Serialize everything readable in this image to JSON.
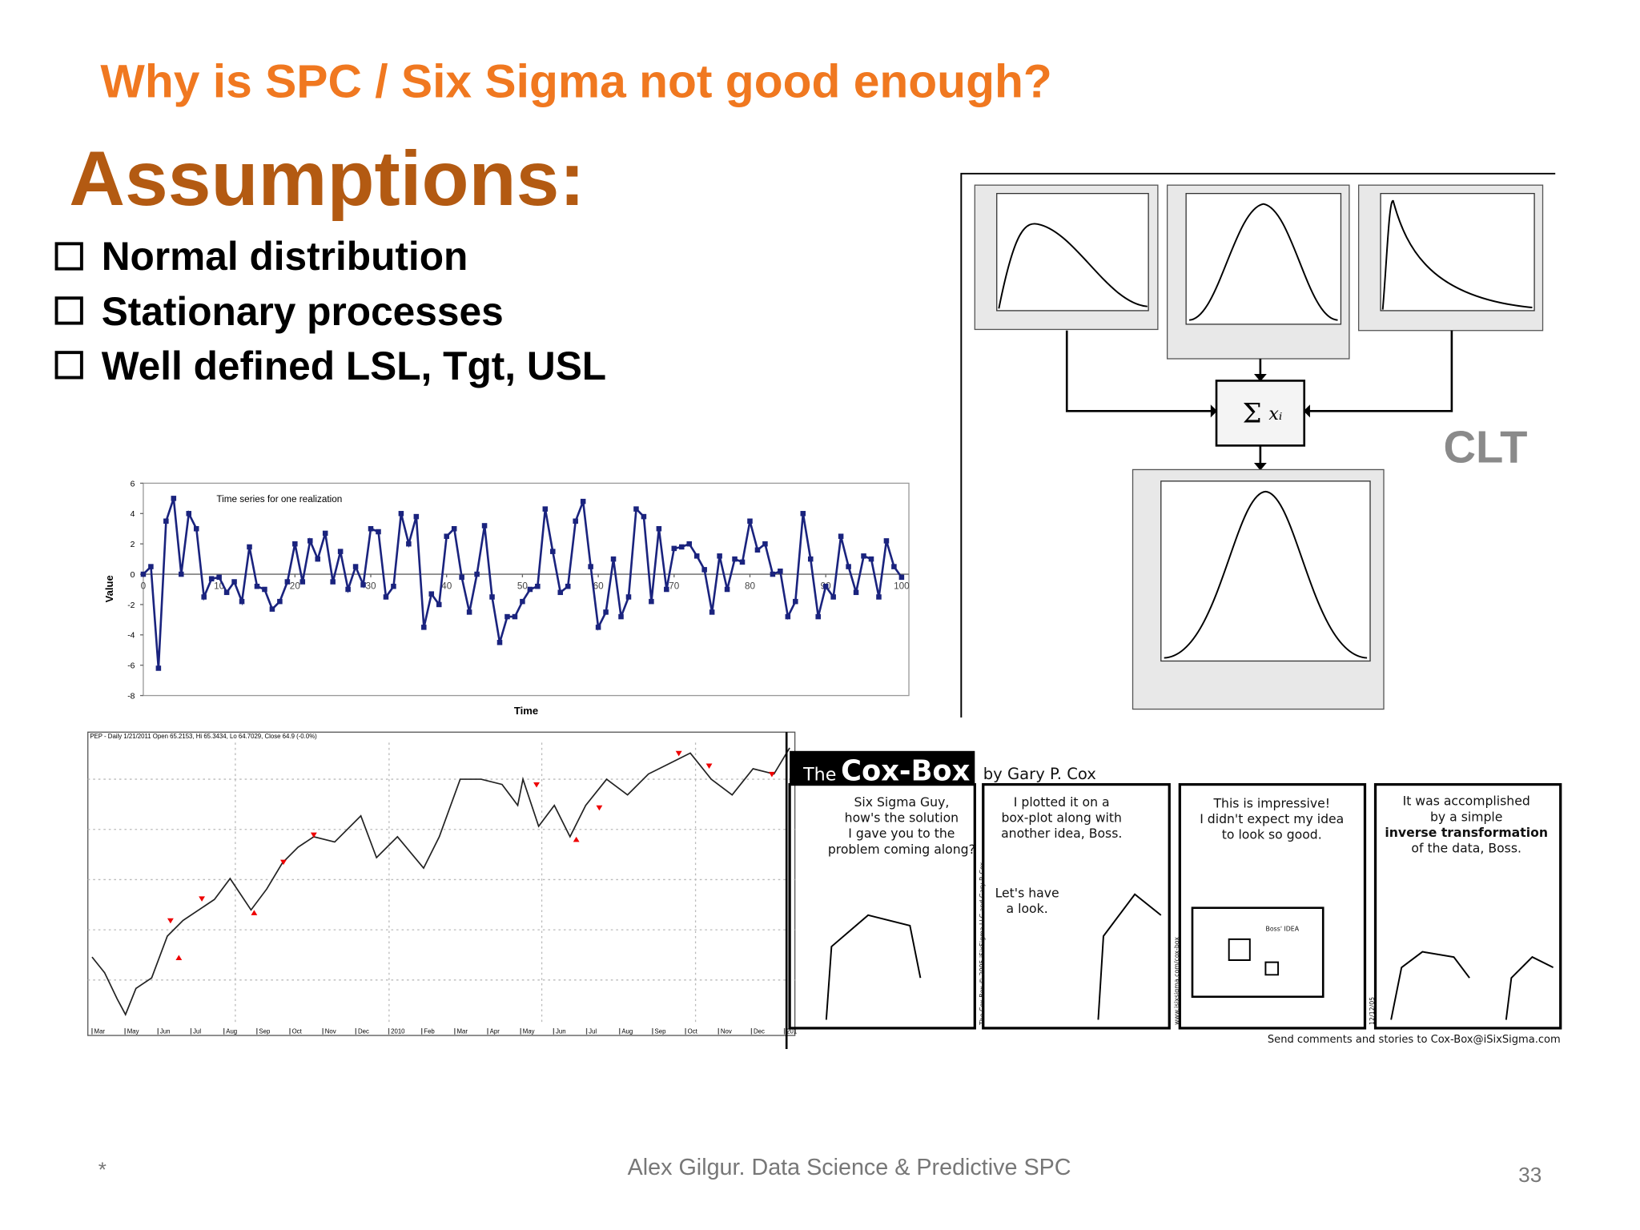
{
  "header": {
    "title": "Why is SPC / Six Sigma not good enough?"
  },
  "heading": "Assumptions:",
  "bullets": [
    "Normal distribution",
    "Stationary processes",
    "Well defined LSL, Tgt, USL"
  ],
  "clt": {
    "label": "CLT"
  },
  "time_series": {
    "title": "Time series for one realization",
    "y_label": "Value",
    "x_label": "Time",
    "xlim": [
      0,
      100
    ],
    "ylim": [
      -8,
      6
    ],
    "xticks": [
      0,
      10,
      20,
      30,
      40,
      50,
      60,
      70,
      80,
      90,
      100
    ],
    "yticks": [
      -8,
      -6,
      -4,
      -2,
      0,
      2,
      4,
      6
    ],
    "color": "#1a237e",
    "values": [
      0,
      0.5,
      -6.2,
      3.5,
      5,
      0,
      4,
      3,
      -1.5,
      -0.3,
      -0.2,
      -1.2,
      -0.5,
      -1.8,
      1.8,
      -0.8,
      -1,
      -2.3,
      -1.8,
      -0.5,
      2,
      -0.5,
      2.2,
      1,
      2.7,
      -0.5,
      1.5,
      -1,
      0.5,
      -0.7,
      3,
      2.8,
      -1.5,
      -0.8,
      4,
      2,
      3.8,
      -3.5,
      -1.3,
      -2,
      2.5,
      3,
      -0.2,
      -2.5,
      0,
      3.2,
      -1.5,
      -4.5,
      -2.8,
      -2.8,
      -1.8,
      -1,
      -0.8,
      4.3,
      1.5,
      -1.2,
      -0.8,
      3.5,
      4.8,
      0.5,
      -3.5,
      -2.5,
      1,
      -2.8,
      -1.5,
      4.3,
      3.8,
      -1.8,
      3,
      -1,
      1.7,
      1.8,
      2,
      1.2,
      0.3,
      -2.5,
      1.2,
      -1,
      1,
      0.8,
      3.5,
      1.6,
      2,
      0,
      0.2,
      -2.8,
      -1.8,
      4,
      1,
      -2.8,
      -0.8,
      -1.5,
      2.5,
      0.5,
      -1.2,
      1.2,
      1,
      -1.5,
      2.2,
      0.5,
      -0.2
    ]
  },
  "stock_chart": {
    "header": "PEP - Daily 1/21/2011 Open 65.2153, Hi 65.3434, Lo 64.7029, Close 64.9 (-0.0%)",
    "months": [
      "Mar",
      "May",
      "Jun",
      "Jul",
      "Aug",
      "Sep",
      "Oct",
      "Nov",
      "Dec",
      "2010",
      "Feb",
      "Mar",
      "Apr",
      "May",
      "Jun",
      "Jul",
      "Aug",
      "Sep",
      "Oct",
      "Nov",
      "Dec",
      "201"
    ]
  },
  "comic": {
    "title_prefix": "The",
    "title": "Cox-Box",
    "byline": "by Gary P. Cox",
    "panel1": [
      "Six Sigma Guy,",
      "how's the solution",
      "I gave you to the",
      "problem coming along?"
    ],
    "panel2": [
      "I plotted it on a",
      "box-plot along with",
      "another idea, Boss."
    ],
    "panel2_reply": [
      "Let's have",
      "a look."
    ],
    "panel3": [
      "This is impressive!",
      "I didn't expect my idea",
      "to look so good."
    ],
    "panel3_label": "Boss' IDEA",
    "panel4": [
      "It was accomplished",
      "by a simple",
      "inverse transformation",
      "of the data, Boss."
    ],
    "side1": "The Cox-Box © 2005 iSixSigma LLC and Gary P. Cox",
    "side2": "www.isixsigma.com/cox-box",
    "side3": "12/12/05",
    "footer": "Send comments and stories to Cox-Box@iSixSigma.com"
  },
  "footer": {
    "marker": "*",
    "text": "Alex Gilgur.  Data Science & Predictive SPC",
    "page": 33
  }
}
